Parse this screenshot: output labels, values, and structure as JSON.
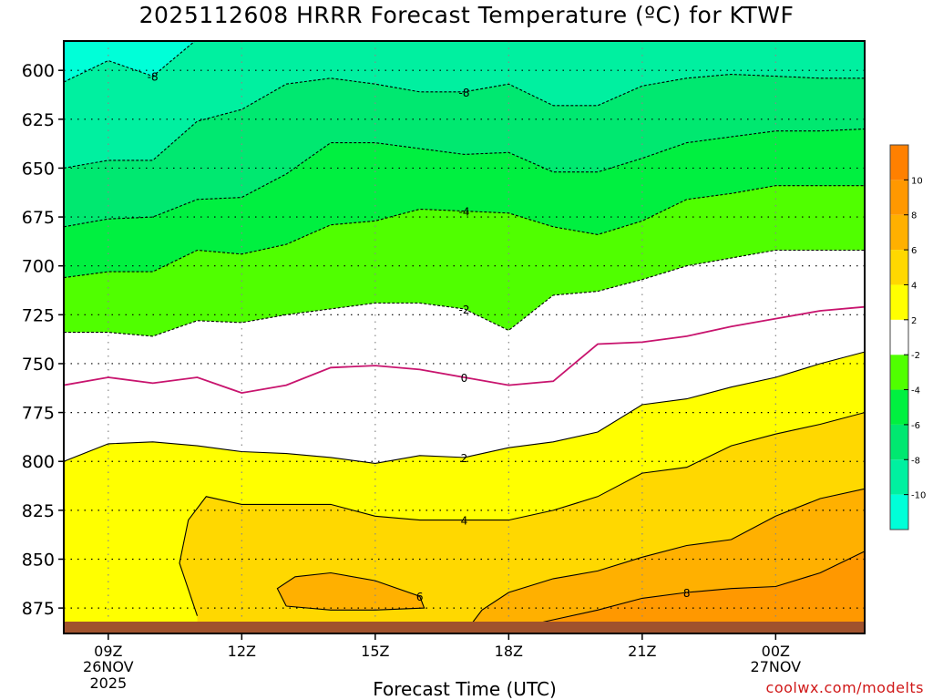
{
  "title": "2025112608 HRRR Forecast Temperature (ºC) for KTWF",
  "xlabel": "Forecast Time (UTC)",
  "credit": "coolwx.com/modelts",
  "colors": {
    "c_lt_m10": "#00ffd8",
    "c_m10_m8": "#00f0a0",
    "c_m8_m6": "#00e870",
    "c_m6_m4": "#00f040",
    "c_m4_m2": "#50ff00",
    "c_m2_2": "#ffffff",
    "c_2_4": "#ffff00",
    "c_4_6": "#ffd800",
    "c_6_8": "#ffb000",
    "c_8_10": "#ff9800",
    "c_10_12": "#ff8000",
    "zero_line": "#c8146e",
    "ground": "#a0522d",
    "credit": "#d01818"
  },
  "chart_data": {
    "type": "contour",
    "title": "2025112608 HRRR Forecast Temperature (ºC) for KTWF",
    "xlabel": "Forecast Time (UTC)",
    "ylabel": "",
    "x_range_hours": [
      8,
      26
    ],
    "y_range_hpa": [
      888,
      585
    ],
    "y_ticks": [
      600,
      625,
      650,
      675,
      700,
      725,
      750,
      775,
      800,
      825,
      850,
      875
    ],
    "x_ticks": [
      {
        "hour": 9,
        "label": "09Z",
        "date": "26NOV",
        "year": "2025"
      },
      {
        "hour": 12,
        "label": "12Z",
        "date": "",
        "year": ""
      },
      {
        "hour": 15,
        "label": "15Z",
        "date": "",
        "year": ""
      },
      {
        "hour": 18,
        "label": "18Z",
        "date": "",
        "year": ""
      },
      {
        "hour": 21,
        "label": "21Z",
        "date": "",
        "year": ""
      },
      {
        "hour": 24,
        "label": "00Z",
        "date": "27NOV",
        "year": ""
      }
    ],
    "colorbar": {
      "levels": [
        -12,
        -10,
        -8,
        -6,
        -4,
        -2,
        2,
        4,
        6,
        8,
        10,
        12
      ],
      "labels": [
        "-10",
        "-8",
        "-6",
        "-4",
        "-2",
        "2",
        "4",
        "6",
        "8",
        "10"
      ]
    },
    "contours": [
      {
        "level": -8,
        "label": "-8",
        "style": "dashed",
        "points": [
          [
            8,
            606
          ],
          [
            9,
            595
          ],
          [
            10,
            603
          ],
          [
            11,
            584
          ]
        ]
      },
      {
        "level": -8,
        "label": "-8",
        "style": "dashed",
        "points": [
          [
            8,
            650
          ],
          [
            9,
            646
          ],
          [
            10,
            646
          ],
          [
            11,
            626
          ],
          [
            12,
            620
          ],
          [
            13,
            607
          ],
          [
            14,
            604
          ],
          [
            15,
            607
          ],
          [
            16,
            611
          ],
          [
            17,
            611
          ],
          [
            18,
            607
          ],
          [
            19,
            618
          ],
          [
            20,
            618
          ],
          [
            21,
            608
          ],
          [
            22,
            604
          ],
          [
            23,
            602
          ],
          [
            24,
            603
          ],
          [
            25,
            604
          ],
          [
            26,
            604
          ]
        ]
      },
      {
        "level": -6,
        "label": "",
        "style": "dashed",
        "points": [
          [
            8,
            680
          ],
          [
            9,
            676
          ],
          [
            10,
            675
          ],
          [
            11,
            666
          ],
          [
            12,
            665
          ],
          [
            13,
            653
          ],
          [
            14,
            637
          ],
          [
            15,
            637
          ],
          [
            16,
            640
          ],
          [
            17,
            643
          ],
          [
            18,
            642
          ],
          [
            19,
            652
          ],
          [
            20,
            652
          ],
          [
            21,
            645
          ],
          [
            22,
            637
          ],
          [
            23,
            634
          ],
          [
            24,
            631
          ],
          [
            25,
            631
          ],
          [
            26,
            630
          ]
        ]
      },
      {
        "level": -4,
        "label": "-4",
        "style": "dashed",
        "points": [
          [
            8,
            706
          ],
          [
            9,
            703
          ],
          [
            10,
            703
          ],
          [
            11,
            692
          ],
          [
            12,
            694
          ],
          [
            13,
            689
          ],
          [
            14,
            679
          ],
          [
            15,
            677
          ],
          [
            16,
            671
          ],
          [
            17,
            672
          ],
          [
            18,
            673
          ],
          [
            19,
            680
          ],
          [
            20,
            684
          ],
          [
            21,
            677
          ],
          [
            22,
            666
          ],
          [
            23,
            663
          ],
          [
            24,
            659
          ],
          [
            25,
            659
          ],
          [
            26,
            659
          ]
        ]
      },
      {
        "level": -2,
        "label": "-2",
        "style": "dashed",
        "points": [
          [
            8,
            734
          ],
          [
            9,
            734
          ],
          [
            10,
            736
          ],
          [
            11,
            728
          ],
          [
            12,
            729
          ],
          [
            13,
            725
          ],
          [
            14,
            722
          ],
          [
            15,
            719
          ],
          [
            16,
            719
          ],
          [
            17,
            722
          ],
          [
            18,
            733
          ],
          [
            19,
            715
          ],
          [
            20,
            713
          ],
          [
            21,
            707
          ],
          [
            22,
            700
          ],
          [
            23,
            696
          ],
          [
            24,
            692
          ],
          [
            25,
            692
          ],
          [
            26,
            692
          ]
        ]
      },
      {
        "level": 0,
        "label": "0",
        "style": "zero",
        "points": [
          [
            8,
            761
          ],
          [
            9,
            757
          ],
          [
            10,
            760
          ],
          [
            11,
            757
          ],
          [
            12,
            765
          ],
          [
            13,
            761
          ],
          [
            14,
            752
          ],
          [
            15,
            751
          ],
          [
            16,
            753
          ],
          [
            17,
            757
          ],
          [
            18,
            761
          ],
          [
            19,
            759
          ],
          [
            20,
            740
          ],
          [
            21,
            739
          ],
          [
            22,
            736
          ],
          [
            23,
            731
          ],
          [
            24,
            727
          ],
          [
            25,
            723
          ],
          [
            26,
            721
          ]
        ]
      },
      {
        "level": 2,
        "label": "2",
        "style": "solid",
        "points": [
          [
            8,
            800
          ],
          [
            9,
            791
          ],
          [
            10,
            790
          ],
          [
            11,
            792
          ],
          [
            12,
            795
          ],
          [
            13,
            796
          ],
          [
            14,
            798
          ],
          [
            15,
            801
          ],
          [
            16,
            797
          ],
          [
            17,
            798
          ],
          [
            18,
            793
          ],
          [
            19,
            790
          ],
          [
            20,
            785
          ],
          [
            21,
            771
          ],
          [
            22,
            768
          ],
          [
            23,
            762
          ],
          [
            24,
            757
          ],
          [
            25,
            750
          ],
          [
            26,
            744
          ]
        ]
      },
      {
        "level": 4,
        "label": "4",
        "style": "solid",
        "points": [
          [
            11,
            879
          ],
          [
            10.6,
            852
          ],
          [
            10.8,
            830
          ],
          [
            11.2,
            818
          ],
          [
            12,
            822
          ],
          [
            13,
            822
          ],
          [
            14,
            822
          ],
          [
            15,
            828
          ],
          [
            16,
            830
          ],
          [
            17,
            830
          ],
          [
            18,
            830
          ],
          [
            19,
            825
          ],
          [
            20,
            818
          ],
          [
            21,
            806
          ],
          [
            22,
            803
          ],
          [
            23,
            792
          ],
          [
            24,
            786
          ],
          [
            25,
            781
          ],
          [
            26,
            775
          ]
        ]
      },
      {
        "level": 6,
        "label": "6",
        "style": "solid",
        "points": [
          [
            13,
            874
          ],
          [
            12.8,
            865
          ],
          [
            13.2,
            859
          ],
          [
            14,
            857
          ],
          [
            15,
            861
          ],
          [
            16,
            869
          ],
          [
            16.1,
            875
          ],
          [
            15,
            876
          ],
          [
            14,
            876
          ],
          [
            13,
            874
          ]
        ]
      },
      {
        "level": 6,
        "label": "",
        "style": "solid",
        "points": [
          [
            17,
            888
          ],
          [
            17.4,
            876
          ],
          [
            18,
            867
          ],
          [
            19,
            860
          ],
          [
            20,
            856
          ],
          [
            21,
            849
          ],
          [
            22,
            843
          ],
          [
            23,
            840
          ],
          [
            24,
            828
          ],
          [
            25,
            819
          ],
          [
            26,
            814
          ]
        ]
      },
      {
        "level": 8,
        "label": "8",
        "style": "solid",
        "points": [
          [
            18,
            886
          ],
          [
            19,
            881
          ],
          [
            20,
            876
          ],
          [
            21,
            870
          ],
          [
            22,
            867
          ],
          [
            23,
            865
          ],
          [
            24,
            864
          ],
          [
            25,
            857
          ],
          [
            26,
            846
          ]
        ]
      },
      {
        "level": 10,
        "label": "",
        "style": "solid",
        "points": [
          [
            21,
            888
          ],
          [
            22,
            886
          ],
          [
            23,
            883
          ],
          [
            24,
            888
          ]
        ]
      }
    ],
    "ground_top_hpa": 883,
    "grid": "dotted"
  }
}
